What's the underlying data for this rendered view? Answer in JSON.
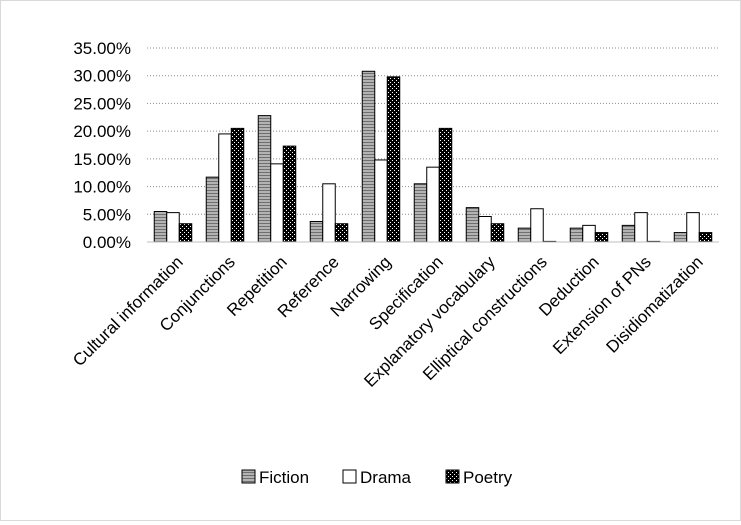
{
  "chart_data": {
    "type": "bar",
    "title": "",
    "xlabel": "",
    "ylabel": "",
    "ylim": [
      0,
      0.35
    ],
    "yticks": [
      "0.00%",
      "5.00%",
      "10.00%",
      "15.00%",
      "20.00%",
      "25.00%",
      "30.00%",
      "35.00%"
    ],
    "grid": true,
    "legend_position": "bottom",
    "categories": [
      "Cultural information",
      "Conjunctions",
      "Repetition",
      "Reference",
      "Narrowing",
      "Specification",
      "Explanatory vocabulary",
      "Elliptical constructions",
      "Deduction",
      "Extension of PNs",
      "Disidiomatization"
    ],
    "series": [
      {
        "name": "Fiction",
        "values": [
          0.055,
          0.117,
          0.228,
          0.037,
          0.308,
          0.105,
          0.062,
          0.025,
          0.025,
          0.03,
          0.017
        ]
      },
      {
        "name": "Drama",
        "values": [
          0.053,
          0.195,
          0.141,
          0.105,
          0.148,
          0.135,
          0.046,
          0.06,
          0.03,
          0.053,
          0.053
        ]
      },
      {
        "name": "Poetry",
        "values": [
          0.033,
          0.205,
          0.173,
          0.033,
          0.298,
          0.205,
          0.033,
          0.0,
          0.017,
          0.0,
          0.017
        ]
      }
    ],
    "colors": {
      "Fiction": "#8c8c8c",
      "Drama": "#ffffff",
      "Poetry": "#111111"
    }
  }
}
